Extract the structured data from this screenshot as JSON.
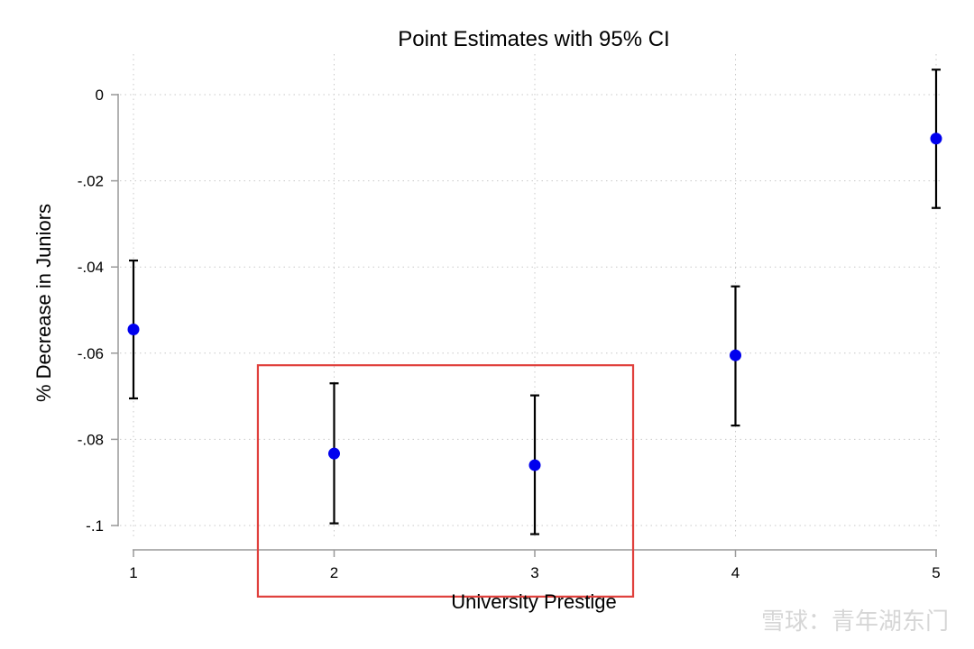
{
  "chart_data": {
    "type": "scatter",
    "title": "Point Estimates with 95% CI",
    "xlabel": "University Prestige",
    "ylabel": "% Decrease in Juniors",
    "x_ticks": [
      {
        "value": 1,
        "label": "1"
      },
      {
        "value": 2,
        "label": "2"
      },
      {
        "value": 3,
        "label": "3"
      },
      {
        "value": 4,
        "label": "4"
      },
      {
        "value": 5,
        "label": "5"
      }
    ],
    "y_ticks": [
      {
        "value": 0,
        "label": "0"
      },
      {
        "value": -0.02,
        "label": "-.02"
      },
      {
        "value": -0.04,
        "label": "-.04"
      },
      {
        "value": -0.06,
        "label": "-.06"
      },
      {
        "value": -0.08,
        "label": "-.08"
      },
      {
        "value": -0.1,
        "label": "-.1"
      }
    ],
    "xlim": [
      0.93,
      5.0
    ],
    "ylim": [
      -0.1055,
      0.0065
    ],
    "grid": true,
    "colors": {
      "point": "#0000ee",
      "errorbar": "#000000",
      "highlight": "#e0403c",
      "grid": "#c8c8c8",
      "axis": "#999999"
    },
    "points": [
      {
        "x": 1,
        "y": -0.0545,
        "ci_low": -0.0705,
        "ci_high": -0.0385
      },
      {
        "x": 2,
        "y": -0.0833,
        "ci_low": -0.0995,
        "ci_high": -0.067
      },
      {
        "x": 3,
        "y": -0.086,
        "ci_low": -0.102,
        "ci_high": -0.0698
      },
      {
        "x": 4,
        "y": -0.0605,
        "ci_low": -0.0768,
        "ci_high": -0.0445
      },
      {
        "x": 5,
        "y": -0.0102,
        "ci_low": -0.0263,
        "ci_high": 0.0058
      }
    ],
    "highlight": {
      "x_from": 1.62,
      "x_to": 3.49,
      "y_from": -0.1165,
      "y_to": -0.0628
    }
  },
  "watermark": "雪球：青年湖东门"
}
